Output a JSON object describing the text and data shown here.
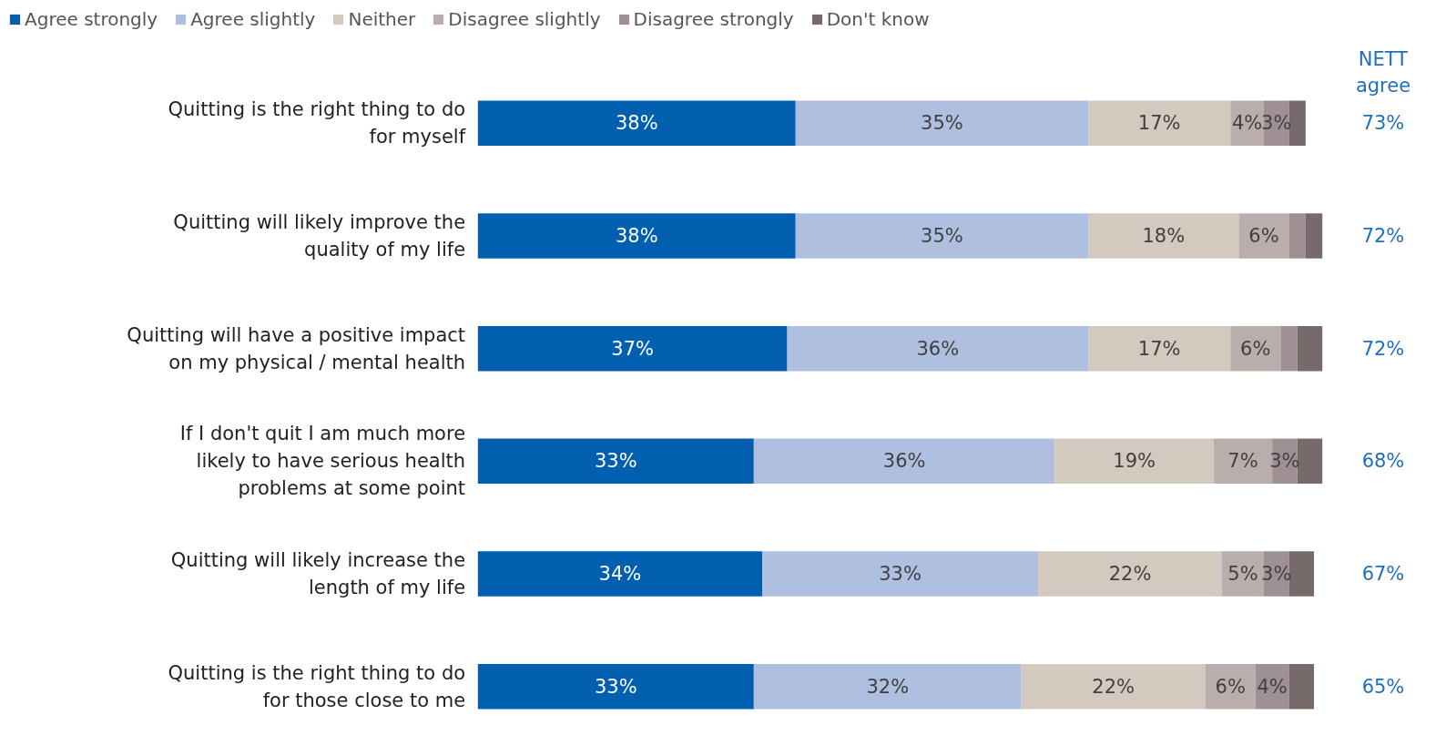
{
  "chart_data": {
    "type": "bar",
    "orientation": "horizontal",
    "stacked": true,
    "legend": "top",
    "categories": [
      "Quitting is the right thing to do for myself",
      "Quitting will likely improve the quality of my life",
      "Quitting will have a positive impact on my physical / mental health",
      "If I don't quit I am much more likely to have serious health problems at some point",
      "Quitting will likely increase the length of my life",
      "Quitting is the right thing to do for those close to me"
    ],
    "series": [
      {
        "name": "Agree strongly",
        "color": "#0060af",
        "values": [
          38,
          38,
          37,
          33,
          34,
          33
        ],
        "value_labels": [
          "38%",
          "38%",
          "37%",
          "33%",
          "34%",
          "33%"
        ]
      },
      {
        "name": "Agree slightly",
        "color": "#aebfe0",
        "values": [
          35,
          35,
          36,
          36,
          33,
          32
        ],
        "value_labels": [
          "35%",
          "35%",
          "36%",
          "36%",
          "33%",
          "32%"
        ]
      },
      {
        "name": "Neither",
        "color": "#d3c9bf",
        "values": [
          17,
          18,
          17,
          19,
          22,
          22
        ],
        "value_labels": [
          "17%",
          "18%",
          "17%",
          "19%",
          "22%",
          "22%"
        ]
      },
      {
        "name": "Disagree slightly",
        "color": "#b9aeab",
        "values": [
          4,
          6,
          6,
          7,
          5,
          6
        ],
        "value_labels": [
          "4%",
          "6%",
          "6%",
          "7%",
          "5%",
          "6%"
        ]
      },
      {
        "name": "Disagree strongly",
        "color": "#9f9093",
        "values": [
          3,
          2,
          2,
          3,
          3,
          4
        ],
        "value_labels": [
          "3%",
          null,
          null,
          "3%",
          "3%",
          "4%"
        ]
      },
      {
        "name": "Don't know",
        "color": "#766a6b",
        "values": [
          2,
          2,
          3,
          3,
          3,
          3
        ],
        "value_labels": [
          null,
          null,
          null,
          null,
          null,
          null
        ]
      }
    ],
    "annotations": [
      "NETT agree",
      "73%",
      "72%",
      "72%",
      "68%",
      "67%",
      "65%"
    ]
  }
}
